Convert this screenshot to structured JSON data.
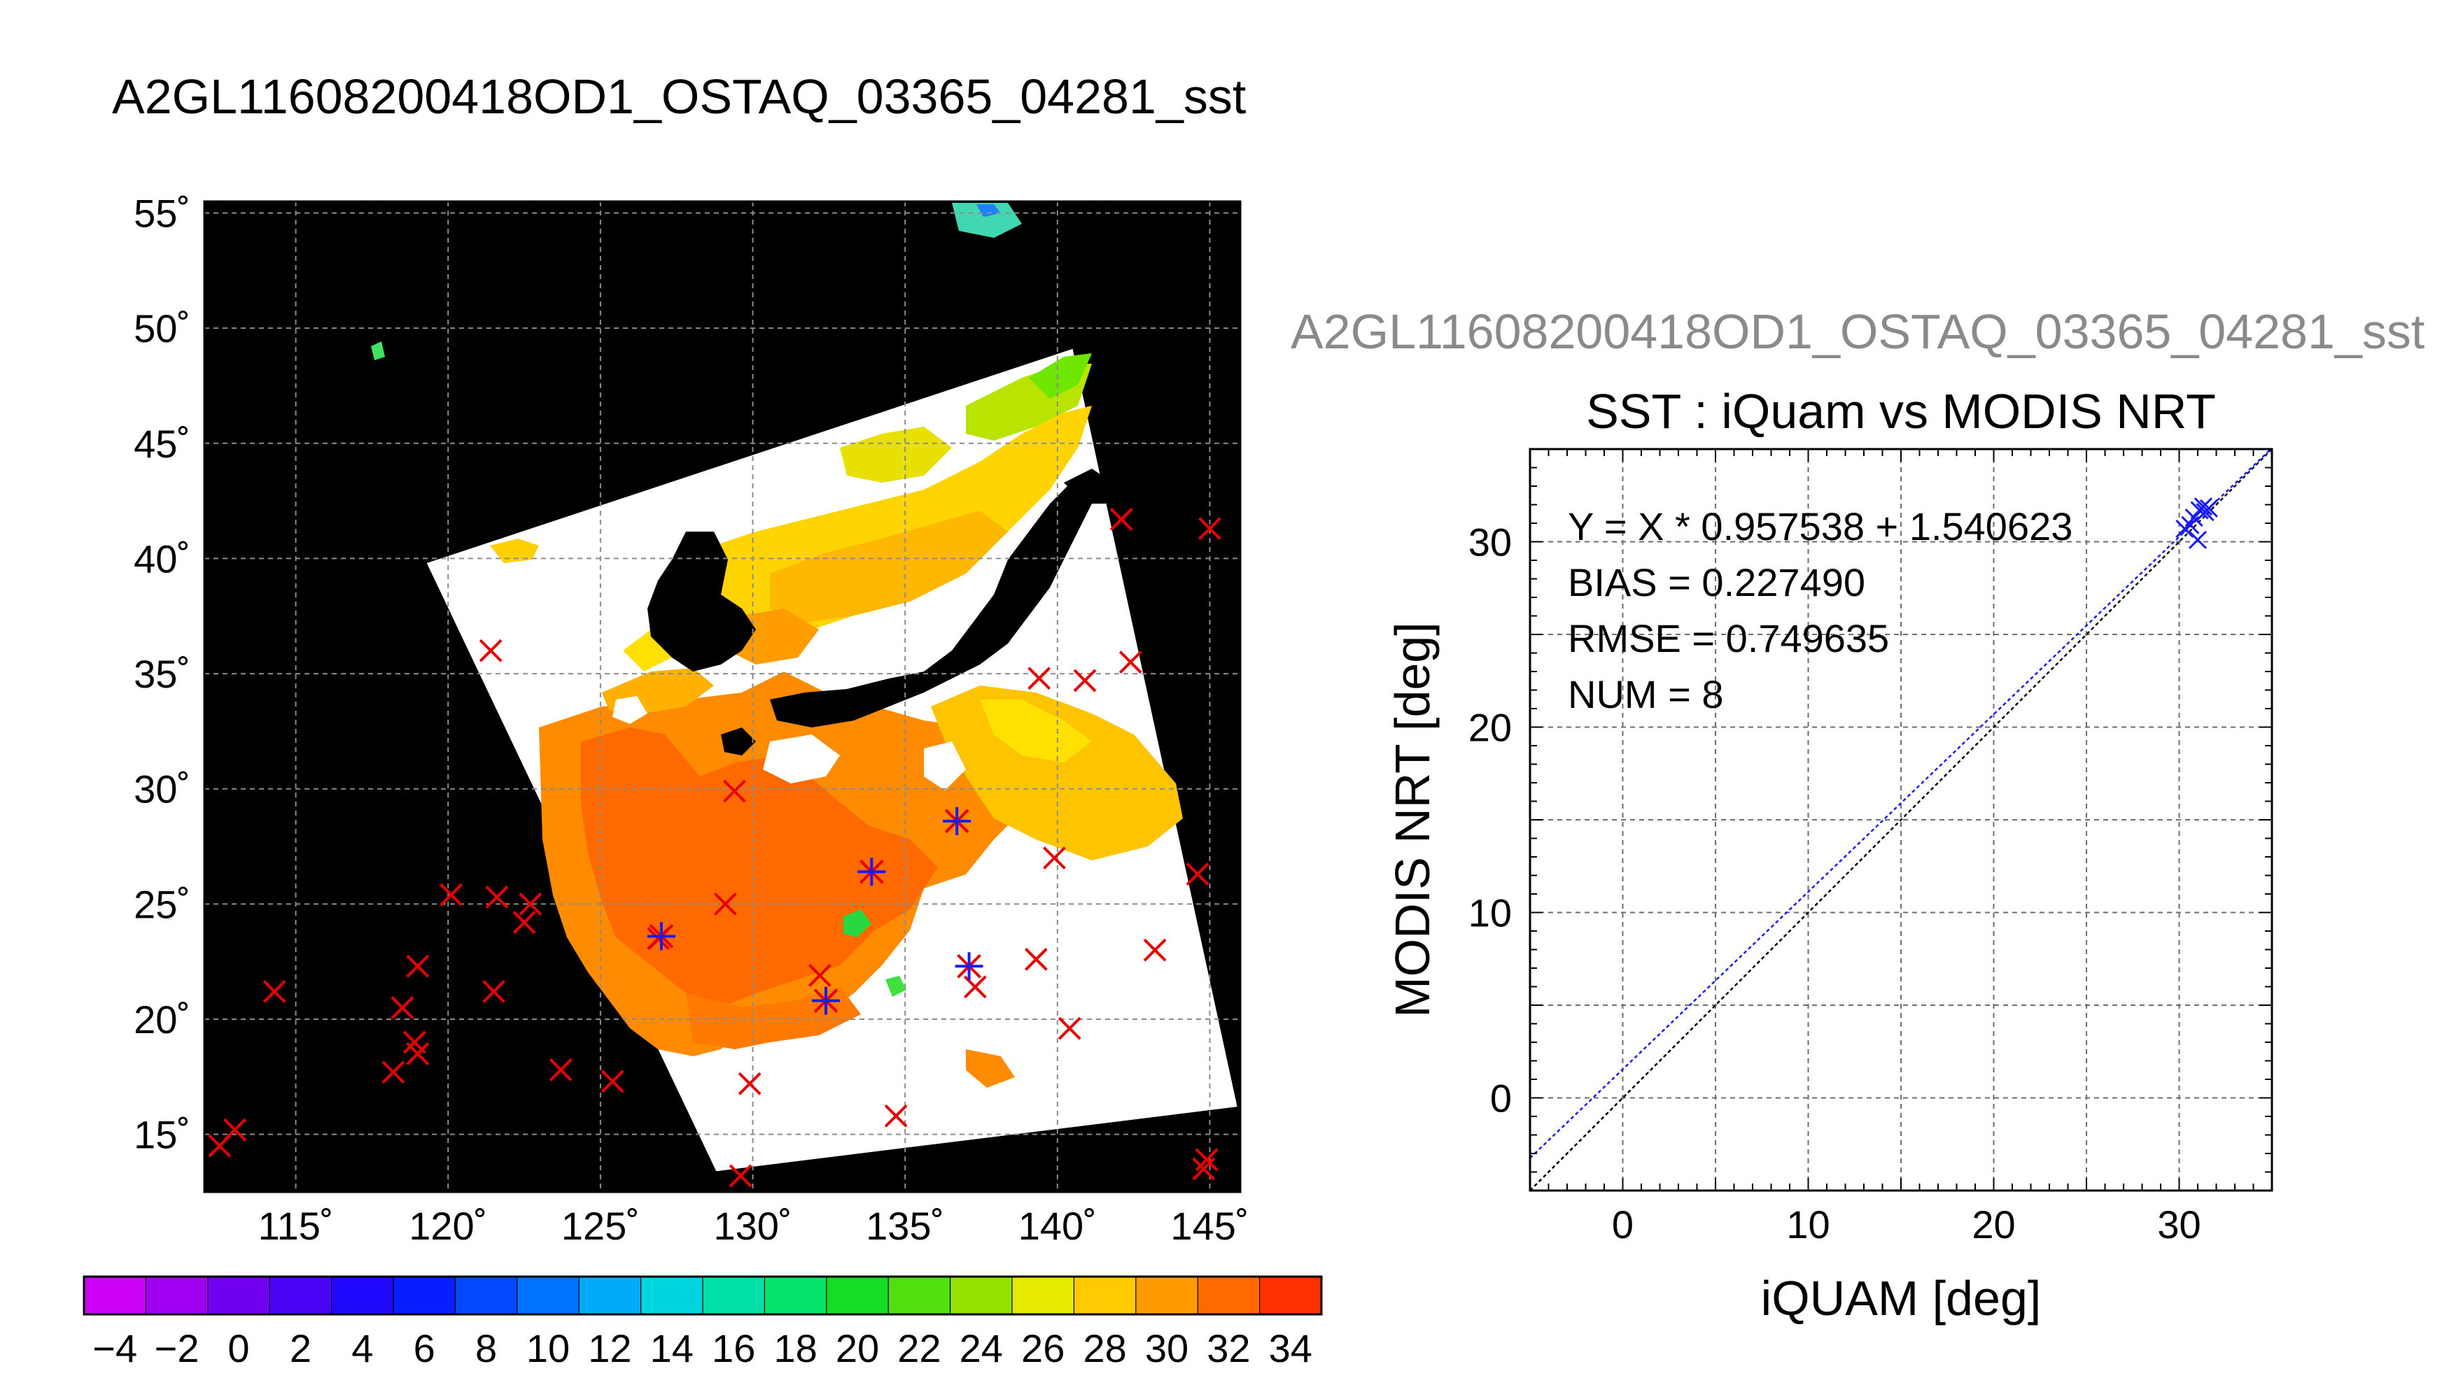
{
  "page": {
    "main_title": "A2GL11608200418OD1_OSTAQ_03365_04281_sst",
    "secondary_title": "A2GL11608200418OD1_OSTAQ_03365_04281_sst"
  },
  "chart_data": [
    {
      "type": "map",
      "xlim": [
        112,
        146
      ],
      "ylim": [
        12.5,
        55.5
      ],
      "x_ticks": [
        115,
        120,
        125,
        130,
        135,
        140,
        145
      ],
      "y_ticks": [
        15,
        20,
        25,
        30,
        35,
        40,
        45,
        50,
        55
      ],
      "x_tick_labels": [
        "115˚",
        "120˚",
        "125˚",
        "130˚",
        "135˚",
        "140˚",
        "145˚"
      ],
      "y_tick_labels": [
        "15˚",
        "20˚",
        "25˚",
        "30˚",
        "35˚",
        "40˚",
        "45˚",
        "50˚",
        "55˚"
      ],
      "grid": true,
      "swath_polygon_lonlat": [
        [
          119.3,
          39.8
        ],
        [
          140.5,
          49.1
        ],
        [
          145.9,
          16.2
        ],
        [
          128.8,
          13.4
        ]
      ],
      "unmatched_buoys_red_x": [
        [
          112.5,
          14.5
        ],
        [
          113.0,
          15.2
        ],
        [
          114.3,
          21.2
        ],
        [
          118.2,
          17.7
        ],
        [
          118.5,
          20.5
        ],
        [
          118.9,
          19.0
        ],
        [
          119.0,
          18.5
        ],
        [
          119.0,
          22.3
        ],
        [
          120.1,
          25.4
        ],
        [
          121.4,
          36.0
        ],
        [
          121.5,
          21.2
        ],
        [
          121.6,
          25.3
        ],
        [
          122.5,
          24.2
        ],
        [
          122.7,
          25.0
        ],
        [
          123.7,
          17.8
        ],
        [
          125.4,
          17.3
        ],
        [
          126.9,
          23.5
        ],
        [
          129.1,
          25.0
        ],
        [
          129.4,
          29.9
        ],
        [
          129.6,
          13.2
        ],
        [
          129.9,
          17.2
        ],
        [
          132.2,
          21.9
        ],
        [
          134.7,
          15.8
        ],
        [
          137.3,
          21.4
        ],
        [
          139.3,
          22.6
        ],
        [
          139.4,
          34.8
        ],
        [
          139.9,
          27.0
        ],
        [
          140.4,
          19.6
        ],
        [
          140.9,
          34.7
        ],
        [
          142.1,
          41.7
        ],
        [
          142.4,
          35.5
        ],
        [
          143.2,
          23.0
        ],
        [
          144.6,
          26.3
        ],
        [
          144.8,
          13.5
        ],
        [
          144.9,
          13.9
        ],
        [
          145.0,
          41.3
        ]
      ],
      "matched_buoys_blue": [
        [
          127.0,
          23.6
        ],
        [
          132.4,
          20.8
        ],
        [
          133.9,
          26.4
        ],
        [
          136.7,
          28.6
        ],
        [
          137.1,
          22.3
        ]
      ]
    },
    {
      "type": "scatter",
      "title": "SST : iQuam vs MODIS NRT",
      "xlabel": "iQUAM [deg]",
      "ylabel": "MODIS NRT [deg]",
      "xlim": [
        -5,
        35
      ],
      "ylim": [
        -5,
        35
      ],
      "x_ticks": [
        0,
        10,
        20,
        30
      ],
      "y_ticks": [
        0,
        10,
        20,
        30
      ],
      "grid": true,
      "points": [
        [
          30.3,
          30.7
        ],
        [
          30.6,
          30.9
        ],
        [
          30.8,
          31.3
        ],
        [
          31.0,
          30.1
        ],
        [
          31.1,
          31.7
        ],
        [
          31.3,
          31.9
        ],
        [
          31.4,
          31.6
        ],
        [
          31.6,
          31.8
        ]
      ],
      "fit": {
        "slope": 0.957538,
        "intercept": 1.540623
      },
      "annotations": [
        "Y = X * 0.957538 + 1.540623",
        "BIAS = 0.227490",
        "RMSE = 0.749635",
        "NUM = 8"
      ]
    },
    {
      "type": "colorbar",
      "min": -5,
      "max": 35,
      "step": 2,
      "tick_labels": [
        "−4",
        "−2",
        "0",
        "2",
        "4",
        "6",
        "8",
        "10",
        "12",
        "14",
        "16",
        "18",
        "20",
        "22",
        "24",
        "26",
        "28",
        "30",
        "32",
        "34"
      ],
      "tick_values": [
        -4,
        -2,
        0,
        2,
        4,
        6,
        8,
        10,
        12,
        14,
        16,
        18,
        20,
        22,
        24,
        26,
        28,
        30,
        32,
        34
      ]
    }
  ],
  "colors": {
    "land": "#000000",
    "cloud": "#ffffff",
    "grid": "#8c8c8c",
    "buoy_unmatched": "#e60000",
    "buoy_matched": "#1a1aff",
    "fit_line": "#1a1aff",
    "one_to_one_line": "#000000",
    "secondary_title": "#8a8a8a"
  }
}
